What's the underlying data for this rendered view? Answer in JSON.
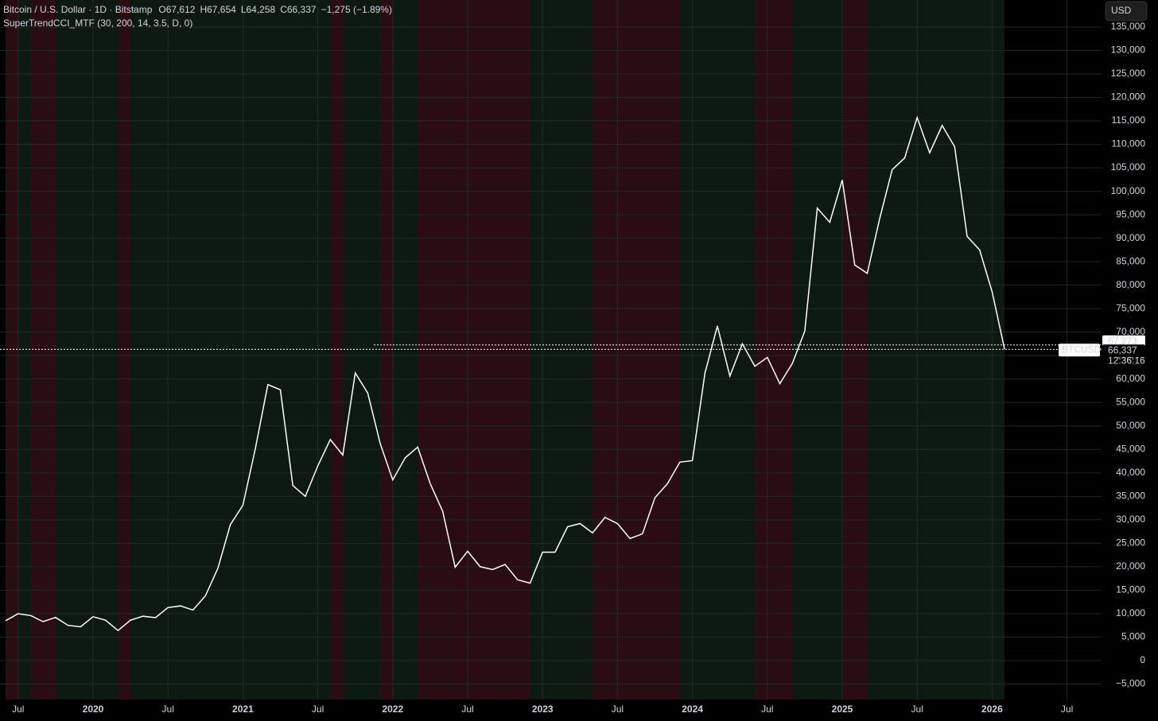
{
  "header": {
    "symbol": "Bitcoin / U.S. Dollar · 1D · Bitstamp",
    "ohlc": [
      {
        "key": "O",
        "value": "67,612"
      },
      {
        "key": "H",
        "value": "67,654"
      },
      {
        "key": "L",
        "value": "64,258"
      },
      {
        "key": "C",
        "value": "66,337"
      }
    ],
    "change": "−1,275 (−1.89%)",
    "indicator": "SuperTrendCCI_MTF (30, 200, 14, 3.5, D, 0)",
    "currency": "USD"
  },
  "chart_data": {
    "type": "line",
    "color": "#ffffff",
    "x": [
      "2019-06",
      "2019-07",
      "2019-08",
      "2019-09",
      "2019-10",
      "2019-11",
      "2019-12",
      "2020-01",
      "2020-02",
      "2020-03",
      "2020-04",
      "2020-05",
      "2020-06",
      "2020-07",
      "2020-08",
      "2020-09",
      "2020-10",
      "2020-11",
      "2020-12",
      "2021-01",
      "2021-02",
      "2021-03",
      "2021-04",
      "2021-05",
      "2021-06",
      "2021-07",
      "2021-08",
      "2021-09",
      "2021-10",
      "2021-11",
      "2021-12",
      "2022-01",
      "2022-02",
      "2022-03",
      "2022-04",
      "2022-05",
      "2022-06",
      "2022-07",
      "2022-08",
      "2022-09",
      "2022-10",
      "2022-11",
      "2022-12",
      "2023-01",
      "2023-02",
      "2023-03",
      "2023-04",
      "2023-05",
      "2023-06",
      "2023-07",
      "2023-08",
      "2023-09",
      "2023-10",
      "2023-11",
      "2023-12",
      "2024-01",
      "2024-02",
      "2024-03",
      "2024-04",
      "2024-05",
      "2024-06",
      "2024-07",
      "2024-08",
      "2024-09",
      "2024-10",
      "2024-11",
      "2024-12",
      "2025-01",
      "2025-02",
      "2025-03",
      "2025-04",
      "2025-05",
      "2025-06",
      "2025-07",
      "2025-08",
      "2025-09",
      "2025-10",
      "2025-11",
      "2025-12",
      "2026-01",
      "2026-02"
    ],
    "values": [
      8500,
      10000,
      9600,
      8300,
      9200,
      7500,
      7200,
      9350,
      8600,
      6400,
      8600,
      9450,
      9150,
      11300,
      11650,
      10780,
      13800,
      19700,
      29000,
      33100,
      45200,
      58800,
      57700,
      37300,
      35000,
      41500,
      47100,
      43800,
      61300,
      57000,
      46200,
      38500,
      43200,
      45500,
      37700,
      31800,
      19900,
      23300,
      20000,
      19400,
      20500,
      17200,
      16500,
      23100,
      23100,
      28500,
      29200,
      27200,
      30500,
      29200,
      26000,
      27000,
      34700,
      37700,
      42300,
      42600,
      61200,
      71300,
      60600,
      67500,
      62700,
      64600,
      59000,
      63300,
      70200,
      96400,
      93400,
      102400,
      84300,
      82500,
      94200,
      104600,
      107100,
      115700,
      108200,
      114000,
      109500,
      90400,
      87500,
      78600,
      66337
    ],
    "bands": [
      {
        "start": "2019-06",
        "end": "2019-07"
      },
      {
        "start": "2019-08",
        "end": "2019-10"
      },
      {
        "start": "2020-03",
        "end": "2020-04"
      },
      {
        "start": "2021-08",
        "end": "2021-09"
      },
      {
        "start": "2021-12",
        "end": "2022-01"
      },
      {
        "start": "2022-03",
        "end": "2022-12"
      },
      {
        "start": "2023-05",
        "end": "2023-12"
      },
      {
        "start": "2024-06",
        "end": "2024-09"
      },
      {
        "start": "2025-01",
        "end": "2025-03"
      }
    ],
    "band_color": "#2a0d12",
    "trend_color": "#0d1a12",
    "ylim": [
      -8300,
      140750
    ],
    "yticks": [
      {
        "value": -5000,
        "label": "−5,000"
      },
      0,
      {
        "value": 5000,
        "label": "5,000"
      },
      {
        "value": 10000,
        "label": "10,000"
      },
      {
        "value": 15000,
        "label": "15,000"
      },
      {
        "value": 20000,
        "label": "20,000"
      },
      {
        "value": 25000,
        "label": "25,000"
      },
      {
        "value": 30000,
        "label": "30,000"
      },
      {
        "value": 35000,
        "label": "35,000"
      },
      {
        "value": 40000,
        "label": "40,000"
      },
      {
        "value": 45000,
        "label": "45,000"
      },
      {
        "value": 50000,
        "label": "50,000"
      },
      {
        "value": 55000,
        "label": "55,000"
      },
      {
        "value": 60000,
        "label": "60,000"
      },
      {
        "value": 65000,
        "label": "65,000"
      },
      {
        "value": 70000,
        "label": "70,000"
      },
      {
        "value": 75000,
        "label": "75,000"
      },
      {
        "value": 80000,
        "label": "80,000"
      },
      {
        "value": 85000,
        "label": "85,000"
      },
      {
        "value": 90000,
        "label": "90,000"
      },
      {
        "value": 95000,
        "label": "95,000"
      },
      {
        "value": 100000,
        "label": "100,000"
      },
      {
        "value": 105000,
        "label": "105,000"
      },
      {
        "value": 110000,
        "label": "110,000"
      },
      {
        "value": 115000,
        "label": "115,000"
      },
      {
        "value": 120000,
        "label": "120,000"
      },
      {
        "value": 125000,
        "label": "125,000"
      },
      {
        "value": 130000,
        "label": "130,000"
      },
      {
        "value": 135000,
        "label": "135,000"
      }
    ],
    "xticks": [
      {
        "value": "2019-07",
        "label": "Jul"
      },
      {
        "value": "2020-01",
        "label": "2020"
      },
      {
        "value": "2020-07",
        "label": "Jul"
      },
      {
        "value": "2021-01",
        "label": "2021"
      },
      {
        "value": "2021-07",
        "label": "Jul"
      },
      {
        "value": "2022-01",
        "label": "2022"
      },
      {
        "value": "2022-07",
        "label": "Jul"
      },
      {
        "value": "2023-01",
        "label": "2023"
      },
      {
        "value": "2023-07",
        "label": "Jul"
      },
      {
        "value": "2024-01",
        "label": "2024"
      },
      {
        "value": "2024-07",
        "label": "Jul"
      },
      {
        "value": "2025-01",
        "label": "2025"
      },
      {
        "value": "2025-07",
        "label": "Jul"
      },
      {
        "value": "2026-01",
        "label": "2026"
      },
      {
        "value": "2026-07",
        "label": "Jul"
      }
    ],
    "grid": true,
    "price_lines": [
      {
        "value": 67273,
        "label": "67,273"
      },
      {
        "value": 66337,
        "label": "66,337"
      }
    ],
    "ticker": "BTCUSD",
    "countdown": "12:36:16"
  }
}
